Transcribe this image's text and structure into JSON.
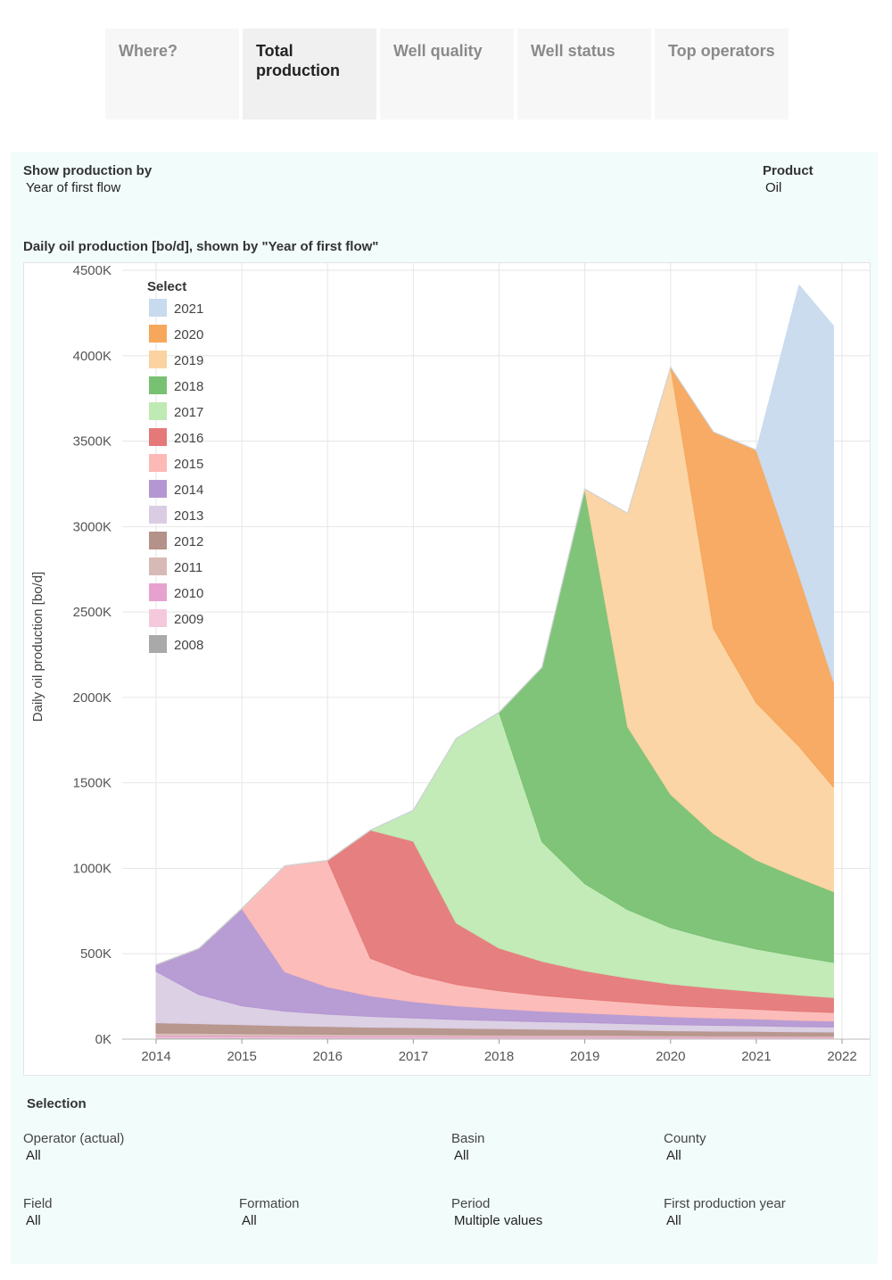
{
  "tabs": [
    {
      "label": "Where?"
    },
    {
      "label": "Total production"
    },
    {
      "label": "Well quality"
    },
    {
      "label": "Well status"
    },
    {
      "label": "Top operators"
    }
  ],
  "controls": {
    "show_by_label": "Show production by",
    "show_by_value": "Year of first flow",
    "product_label": "Product",
    "product_value": "Oil"
  },
  "chart_heading": "Daily oil production [bo/d], shown by \"Year of first flow\"",
  "legend_title": "Select",
  "selection": {
    "title": "Selection",
    "filters": [
      {
        "label": "Operator (actual)",
        "value": "All"
      },
      {
        "label": "Basin",
        "value": "All"
      },
      {
        "label": "County",
        "value": "All"
      },
      {
        "label": "Field",
        "value": "All"
      },
      {
        "label": "Formation",
        "value": "All"
      },
      {
        "label": "Period",
        "value": "Multiple values"
      },
      {
        "label": "First production year",
        "value": "All"
      }
    ]
  },
  "chart_data": {
    "type": "area",
    "stacked": true,
    "ylabel": "Daily oil production [bo/d]",
    "xlabel": "",
    "x_ticks": [
      "2014",
      "2015",
      "2016",
      "2017",
      "2018",
      "2019",
      "2020",
      "2021",
      "2022"
    ],
    "y_ticks": [
      "0K",
      "500K",
      "1000K",
      "1500K",
      "2000K",
      "2500K",
      "3000K",
      "3500K",
      "4000K",
      "4500K"
    ],
    "xlim": [
      2014,
      2022
    ],
    "ylim": [
      0,
      4500
    ],
    "grid": true,
    "legend_position": "top-left",
    "x": [
      2014.0,
      2014.5,
      2015.0,
      2015.5,
      2016.0,
      2016.5,
      2017.0,
      2017.5,
      2018.0,
      2018.5,
      2019.0,
      2019.5,
      2020.0,
      2020.5,
      2021.0,
      2021.5,
      2021.9
    ],
    "series": [
      {
        "name": "2008",
        "color": "#a9a9a9",
        "values": [
          8,
          8,
          8,
          7,
          7,
          7,
          7,
          6,
          6,
          6,
          6,
          6,
          5,
          5,
          5,
          5,
          5
        ]
      },
      {
        "name": "2009",
        "color": "#f5c9dc",
        "values": [
          5,
          5,
          5,
          5,
          4,
          4,
          4,
          4,
          4,
          4,
          4,
          3,
          3,
          3,
          3,
          3,
          3
        ]
      },
      {
        "name": "2010",
        "color": "#e7a1cf",
        "values": [
          8,
          8,
          7,
          7,
          6,
          6,
          6,
          6,
          5,
          5,
          5,
          5,
          5,
          4,
          4,
          4,
          4
        ]
      },
      {
        "name": "2011",
        "color": "#d7b9b6",
        "values": [
          15,
          14,
          13,
          12,
          12,
          11,
          11,
          10,
          10,
          9,
          9,
          9,
          8,
          8,
          8,
          7,
          7
        ]
      },
      {
        "name": "2012",
        "color": "#b49189",
        "values": [
          60,
          56,
          52,
          48,
          45,
          42,
          40,
          38,
          36,
          34,
          32,
          30,
          28,
          27,
          26,
          24,
          23
        ]
      },
      {
        "name": "2013",
        "color": "#dacde3",
        "values": [
          300,
          170,
          110,
          85,
          72,
          63,
          56,
          51,
          47,
          44,
          41,
          38,
          36,
          34,
          32,
          30,
          29
        ]
      },
      {
        "name": "2014",
        "color": "#b497d2",
        "values": [
          40,
          270,
          570,
          230,
          160,
          120,
          95,
          80,
          70,
          62,
          56,
          51,
          46,
          43,
          40,
          37,
          35
        ]
      },
      {
        "name": "2015",
        "color": "#fcb9b6",
        "values": [
          0,
          0,
          0,
          620,
          740,
          220,
          160,
          125,
          105,
          92,
          82,
          74,
          67,
          62,
          57,
          53,
          50
        ]
      },
      {
        "name": "2016",
        "color": "#e57979",
        "values": [
          0,
          0,
          0,
          0,
          0,
          750,
          780,
          360,
          250,
          200,
          165,
          142,
          125,
          113,
          103,
          95,
          88
        ]
      },
      {
        "name": "2017",
        "color": "#bfeab4",
        "values": [
          0,
          0,
          0,
          0,
          0,
          0,
          180,
          1080,
          1380,
          700,
          510,
          400,
          330,
          285,
          250,
          225,
          205
        ]
      },
      {
        "name": "2018",
        "color": "#79c172",
        "values": [
          0,
          0,
          0,
          0,
          0,
          0,
          0,
          0,
          0,
          1020,
          2310,
          1070,
          780,
          620,
          520,
          460,
          415
        ]
      },
      {
        "name": "2019",
        "color": "#fbd3a0",
        "values": [
          0,
          0,
          0,
          0,
          0,
          0,
          0,
          0,
          0,
          0,
          0,
          1250,
          2500,
          1200,
          920,
          770,
          610
        ]
      },
      {
        "name": "2020",
        "color": "#f7a75c",
        "values": [
          0,
          0,
          0,
          0,
          0,
          0,
          0,
          0,
          0,
          0,
          0,
          0,
          0,
          1150,
          1480,
          1000,
          620
        ]
      },
      {
        "name": "2021",
        "color": "#c8daee",
        "values": [
          0,
          0,
          0,
          0,
          0,
          0,
          0,
          0,
          0,
          0,
          0,
          0,
          0,
          0,
          0,
          1700,
          2080
        ]
      }
    ]
  }
}
